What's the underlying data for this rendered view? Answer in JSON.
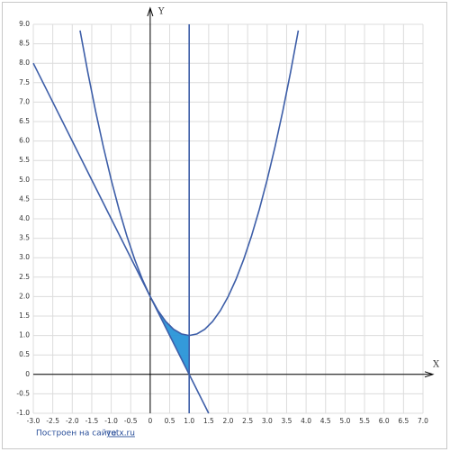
{
  "chart_data": {
    "type": "line",
    "x_label": "X",
    "y_label": "Y",
    "xlim": [
      -3,
      7
    ],
    "ylim": [
      -1,
      9
    ],
    "grid": true,
    "xticks": [
      {
        "value": -3,
        "label": "-3.0"
      },
      {
        "value": -2.5,
        "label": "-2.5"
      },
      {
        "value": -2,
        "label": "-2.0"
      },
      {
        "value": -1.5,
        "label": "-1.5"
      },
      {
        "value": -1,
        "label": "-1.0"
      },
      {
        "value": -0.5,
        "label": "-0.5"
      },
      0,
      {
        "value": 0.5,
        "label": "0.5"
      },
      {
        "value": 1,
        "label": "1.0"
      },
      {
        "value": 1.5,
        "label": "1.5"
      },
      {
        "value": 2,
        "label": "2.0"
      },
      {
        "value": 2.5,
        "label": "2.5"
      },
      {
        "value": 3,
        "label": "3.0"
      },
      {
        "value": 3.5,
        "label": "3.5"
      },
      {
        "value": 4,
        "label": "4.0"
      },
      {
        "value": 4.5,
        "label": "4.5"
      },
      {
        "value": 5,
        "label": "5.0"
      },
      {
        "value": 5.5,
        "label": "5.5"
      },
      {
        "value": 6,
        "label": "6.0"
      },
      {
        "value": 6.5,
        "label": "6.5"
      },
      {
        "value": 7,
        "label": "7.0"
      }
    ],
    "yticks": [
      {
        "value": -1,
        "label": "-1.0"
      },
      {
        "value": -0.5,
        "label": "-0.5"
      },
      0,
      {
        "value": 0.5,
        "label": "0.5"
      },
      {
        "value": 1,
        "label": "1.0"
      },
      {
        "value": 1.5,
        "label": "1.5"
      },
      {
        "value": 2,
        "label": "2.0"
      },
      {
        "value": 2.5,
        "label": "2.5"
      },
      {
        "value": 3,
        "label": "3.0"
      },
      {
        "value": 3.5,
        "label": "3.5"
      },
      {
        "value": 4,
        "label": "4.0"
      },
      {
        "value": 4.5,
        "label": "4.5"
      },
      {
        "value": 5,
        "label": "5.0"
      },
      {
        "value": 5.5,
        "label": "5.5"
      },
      {
        "value": 6,
        "label": "6.0"
      },
      {
        "value": 6.5,
        "label": "6.5"
      },
      {
        "value": 7,
        "label": "7.0"
      },
      {
        "value": 7.5,
        "label": "7.5"
      },
      {
        "value": 8,
        "label": "8.0"
      },
      {
        "value": 8.5,
        "label": "8.5"
      },
      {
        "value": 9,
        "label": "9.0"
      }
    ],
    "series": [
      {
        "color": "#3d5ea8",
        "x": [
          -1.8,
          -1.6,
          -1.4,
          -1.2,
          -1,
          -0.8,
          -0.6,
          -0.4,
          -0.2,
          0,
          0.2,
          0.4,
          0.6,
          0.8,
          1,
          1.2,
          1.4,
          1.6,
          1.8,
          2,
          2.2,
          2.4,
          2.6,
          2.8,
          3,
          3.2,
          3.4,
          3.6,
          3.8
        ],
        "values": [
          8.84,
          7.76,
          6.76,
          5.84,
          5,
          4.24,
          3.56,
          2.96,
          2.44,
          2,
          1.64,
          1.36,
          1.16,
          1.04,
          1,
          1.04,
          1.16,
          1.36,
          1.64,
          2,
          2.44,
          2.96,
          3.56,
          4.24,
          5,
          5.84,
          6.76,
          7.76,
          8.84
        ]
      },
      {
        "color": "#3d5ea8",
        "x": [
          -3,
          1.5
        ],
        "values": [
          8,
          -1
        ]
      },
      {
        "color": "#3d5ea8",
        "x": [
          1,
          1
        ],
        "values": [
          -1,
          9
        ]
      }
    ],
    "shade": {
      "color": "#1e8fd6",
      "x": [
        0,
        0.2,
        0.4,
        0.6,
        0.8,
        1
      ],
      "upper": [
        2,
        1.64,
        1.36,
        1.16,
        1.04,
        1
      ],
      "lower": [
        2,
        1.6,
        1.2,
        0.8,
        0.4,
        0
      ]
    }
  },
  "footer": {
    "text": "Построен на сайте",
    "link": "yotx.ru"
  }
}
